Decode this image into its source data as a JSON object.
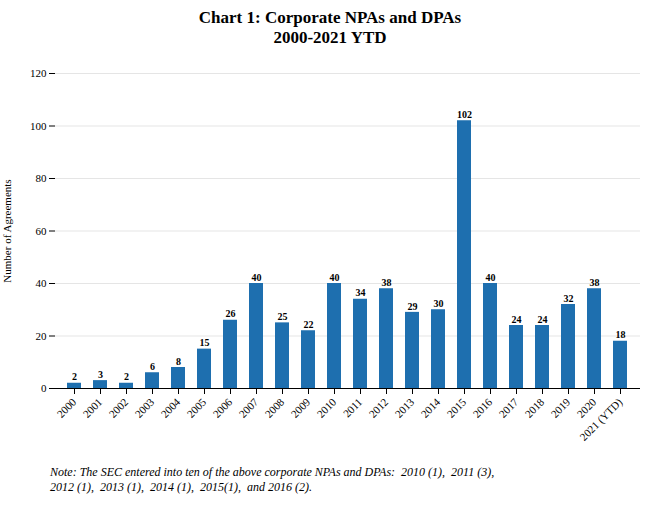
{
  "chart_data": {
    "type": "bar",
    "title": "Chart 1: Corporate NPAs and DPAs",
    "subtitle": "2000-2021 YTD",
    "ylabel": "Number of Agreements",
    "categories": [
      "2000",
      "2001",
      "2002",
      "2003",
      "2004",
      "2005",
      "2006",
      "2007",
      "2008",
      "2009",
      "2010",
      "2011",
      "2012",
      "2013",
      "2014",
      "2015",
      "2016",
      "2017",
      "2018",
      "2019",
      "2020",
      "2021 (YTD)"
    ],
    "values": [
      2,
      3,
      2,
      6,
      8,
      15,
      26,
      40,
      25,
      22,
      40,
      34,
      38,
      29,
      30,
      102,
      40,
      24,
      24,
      32,
      38,
      18
    ],
    "color": "#1e6faf",
    "ylim": [
      0,
      120
    ],
    "yticks": [
      0,
      20,
      40,
      60,
      80,
      100,
      120
    ],
    "grid": true,
    "data_labels": true,
    "annotations": [
      "Note: The SEC entered into ten of the above corporate NPAs and DPAs:  2010 (1),  2011 (3),\n2012 (1),  2013 (1),  2014 (1),  2015(1),  and 2016 (2)."
    ]
  }
}
